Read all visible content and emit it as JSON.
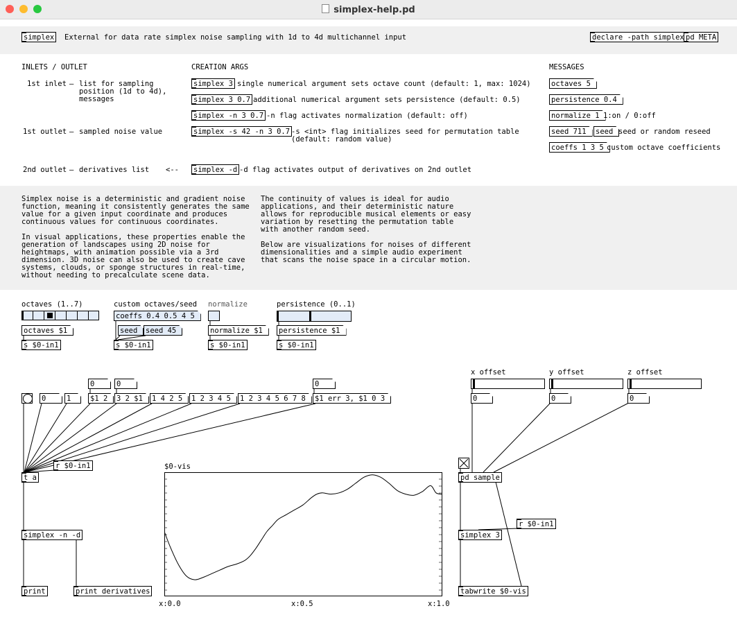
{
  "window": {
    "title": "simplex-help.pd"
  },
  "header": {
    "object": "simplex",
    "description": "External for data rate simplex noise sampling with 1d to 4d multichannel input",
    "declare": "declare -path simplex",
    "meta": "pd META"
  },
  "sections": {
    "inlets_outlet": "INLETS / OUTLET",
    "creation_args": "CREATION ARGS",
    "messages": "MESSAGES"
  },
  "inlets": [
    {
      "name": "1st inlet",
      "text": "list for sampling\nposition (1d to 4d),\nmessages"
    },
    {
      "name": "1st outlet",
      "text": "sampled noise value"
    },
    {
      "name": "2nd outlet",
      "text": "derivatives list"
    }
  ],
  "arrow": "<--",
  "dash": "–",
  "args": [
    {
      "obj": "simplex 3",
      "text": "single numerical argument sets octave count (default: 1, max: 1024)"
    },
    {
      "obj": "simplex 3 0.7",
      "text": "additional numerical argument sets persistence (default: 0.5)"
    },
    {
      "obj": "simplex -n 3 0.7",
      "text": "-n flag activates normalization (default: off)"
    },
    {
      "obj": "simplex -s 42 -n 3 0.7",
      "text": "-s <int> flag initializes seed for permutation table\n(default: random value)"
    },
    {
      "obj": "simplex -d",
      "text": "-d flag activates output of derivatives on 2nd outlet"
    }
  ],
  "messages": {
    "octaves": "octaves 5",
    "persistence": "persistence 0.4",
    "normalize": "normalize 1",
    "normalize_note": "1:on / 0:off",
    "seed": "seed 711",
    "seed2": "seed",
    "seed_note": "seed or random reseed",
    "coeffs": "coeffs 1 3 5",
    "coeffs_note": "custom octave coefficients"
  },
  "description": {
    "left": "Simplex noise is a deterministic and gradient noise\nfunction, meaning it consistently generates the same\nvalue for a given input coordinate and produces\ncontinuous values for continuous coordinates.\n\nIn visual applications, these properties enable the\ngeneration of landscapes using 2D noise for\nheightmaps, with animation possible via a 3rd\ndimension. 3D noise can also be used to create cave\nsystems, clouds, or sponge structures in real-time,\nwithout needing to precalculate scene data.",
    "right": "The continuity of values is ideal for audio\napplications, and their deterministic nature\nallows for reproducible musical elements or easy\nvariation by resetting the permutation table\nwith another random seed.\n\nBelow are visualizations for noises of different\ndimensionalities and a simple audio experiment\nthat scans the noise space in a circular motion."
  },
  "controls": {
    "octaves_label": "octaves (1..7)",
    "octaves_value": 3,
    "octaves_msg": "octaves $1",
    "coeffs_label": "custom octaves/seed",
    "coeffs_msg": "coeffs 0.4 0.5 4 5",
    "seed_msg": "seed",
    "seed45": "seed 45",
    "normalize_label": "normalize",
    "normalize_msg": "normalize $1",
    "persistence_label": "persistence (0..1)",
    "persistence_value": 0.45,
    "persistence_msg": "persistence $1",
    "send": "s $0-in1"
  },
  "patch": {
    "zero": "0",
    "one": "1",
    "m1": "$1 2",
    "m2": "3 2 $1",
    "m3": "1 4 2 5",
    "m4": "1 2 3 4 5",
    "m5": "1 2 3 4 5 6 7 8",
    "m6": "$1 err 3, $1 0 3",
    "receive": "r $0-in1",
    "trigger": "t a",
    "simplex": "simplex -n -d",
    "print": "print",
    "print_deriv": "print derivatives",
    "x_offset": "x offset",
    "y_offset": "y offset",
    "z_offset": "z offset",
    "pd_sample": "pd sample",
    "simplex3": "simplex 3",
    "tabwrite": "tabwrite $0-vis"
  },
  "graph": {
    "name": "$0-vis",
    "xlabels": [
      "x:0.0",
      "x:0.5",
      "x:1.0"
    ]
  },
  "colors": {
    "blue": "#e3ecf8",
    "band": "#f0f0f0"
  }
}
